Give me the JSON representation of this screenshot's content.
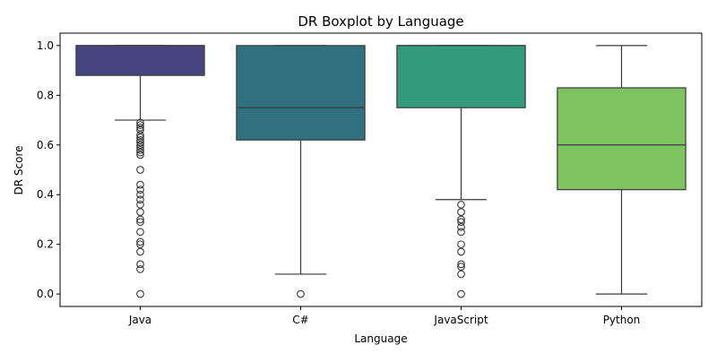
{
  "chart_data": {
    "type": "box",
    "title": "DR Boxplot by Language",
    "xlabel": "Language",
    "ylabel": "DR Score",
    "ylim": [
      -0.05,
      1.05
    ],
    "yticks": [
      0.0,
      0.2,
      0.4,
      0.6,
      0.8,
      1.0
    ],
    "ytick_labels": [
      "0.0",
      "0.2",
      "0.4",
      "0.6",
      "0.8",
      "1.0"
    ],
    "grid": false,
    "categories": [
      "Java",
      "C#",
      "JavaScript",
      "Python"
    ],
    "colors": [
      "#46457f",
      "#31717f",
      "#339a7b",
      "#7dc35f"
    ],
    "boxes": [
      {
        "category": "Java",
        "q1": 0.88,
        "median": 1.0,
        "q3": 1.0,
        "whisker_low": 0.7,
        "whisker_high": 1.0,
        "outliers": [
          0.69,
          0.68,
          0.67,
          0.66,
          0.64,
          0.63,
          0.62,
          0.61,
          0.6,
          0.59,
          0.58,
          0.57,
          0.56,
          0.5,
          0.44,
          0.42,
          0.4,
          0.38,
          0.36,
          0.33,
          0.3,
          0.29,
          0.25,
          0.21,
          0.2,
          0.17,
          0.12,
          0.1,
          0.0
        ]
      },
      {
        "category": "C#",
        "q1": 0.62,
        "median": 0.75,
        "q3": 1.0,
        "whisker_low": 0.08,
        "whisker_high": 1.0,
        "outliers": [
          0.0
        ]
      },
      {
        "category": "JavaScript",
        "q1": 0.75,
        "median": 1.0,
        "q3": 1.0,
        "whisker_low": 0.38,
        "whisker_high": 1.0,
        "outliers": [
          0.36,
          0.33,
          0.3,
          0.29,
          0.27,
          0.25,
          0.2,
          0.17,
          0.12,
          0.11,
          0.08,
          0.0
        ]
      },
      {
        "category": "Python",
        "q1": 0.42,
        "median": 0.6,
        "q3": 0.83,
        "whisker_low": 0.0,
        "whisker_high": 1.0,
        "outliers": []
      }
    ]
  }
}
